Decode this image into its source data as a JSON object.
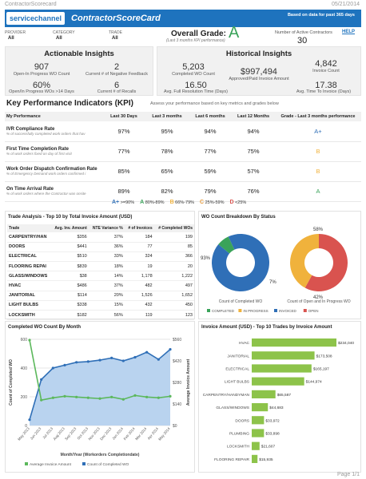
{
  "page": {
    "header_title": "ContractorScorecard",
    "header_date": "05/21/2014",
    "page_num": "Page 1/1"
  },
  "banner": {
    "logo": "servicechannel",
    "title": "ContractorScoreCard",
    "note": "Based on data for past 365 days",
    "help": "HELP"
  },
  "filters": [
    {
      "label": "PROVIDER",
      "value": "All"
    },
    {
      "label": "CATEGORY",
      "value": "All"
    },
    {
      "label": "TRADE",
      "value": "All"
    }
  ],
  "overall": {
    "label": "Overall Grade:",
    "sub": "(Last 3 months KPI performance)",
    "grade": "A"
  },
  "active": {
    "label": "Number of Active Contractors",
    "value": "30"
  },
  "actionable": {
    "title": "Actionable Insights",
    "items": [
      {
        "value": "907",
        "label": "Open-In Progress WO Count"
      },
      {
        "value": "2",
        "label": "Current # of Negative Feedback"
      },
      {
        "value": "60%",
        "label": "Open/In Progress WOs >14 Days"
      },
      {
        "value": "6",
        "label": "Current # of Recalls"
      }
    ]
  },
  "historical": {
    "title": "Historical Insights",
    "items": [
      {
        "value": "5,203",
        "label": "Completed WO Count"
      },
      {
        "value": "$997,494",
        "label": "Approved/Paid Invoice Amount"
      },
      {
        "value": "4,842",
        "label": "Invoice Count"
      },
      {
        "value": "16.50",
        "label": "Avg. Full Resolution Time (Days)"
      },
      {
        "value": "17.38",
        "label": "Avg. Time To Invoice (Days)"
      }
    ]
  },
  "kpi": {
    "title": "Key Performance Indicators (KPI)",
    "subtitle": "Assess your performance based on key metrics and grades below",
    "headers": [
      "My Performance",
      "Last 30 Days",
      "Last 3 months",
      "Last 6 months",
      "Last 12 Months",
      "Grade - Last 3 months performance"
    ],
    "rows": [
      {
        "title": "IVR Compliance Rate",
        "sub": "% of successfully completed work orders that hav",
        "vals": [
          "97%",
          "95%",
          "94%",
          "94%"
        ],
        "grade": "A+",
        "color": "#2f6fb7"
      },
      {
        "title": "First Time Completion Rate",
        "sub": "% of work orders fixed on day of first visit",
        "vals": [
          "77%",
          "78%",
          "77%",
          "75%"
        ],
        "grade": "B",
        "color": "#f0b23c"
      },
      {
        "title": "Work Order Dispatch Confirmation Rate",
        "sub": "% of Emergency Demand work orders confirmed i",
        "vals": [
          "85%",
          "65%",
          "59%",
          "57%"
        ],
        "grade": "B",
        "color": "#f0b23c"
      },
      {
        "title": "On Time Arrival Rate",
        "sub": "% of work orders where the Contractor was onsite",
        "vals": [
          "89%",
          "82%",
          "79%",
          "76%"
        ],
        "grade": "A",
        "color": "#3aa35a"
      }
    ],
    "legend": [
      {
        "grade": "A+",
        "range": ">=90%",
        "color": "#2f6fb7"
      },
      {
        "grade": "A",
        "range": "80%-89%",
        "color": "#3aa35a"
      },
      {
        "grade": "B",
        "range": "66%-79%",
        "color": "#f0b23c"
      },
      {
        "grade": "C",
        "range": "25%-59%",
        "color": "#e59a3c"
      },
      {
        "grade": "D",
        "range": "<25%",
        "color": "#d9534f"
      }
    ]
  },
  "trade": {
    "title": "Trade Analysis - Top 10 by Total Invoice Amount (USD)",
    "headers": [
      "Trade",
      "Avg. Inv. Amount",
      "NTE Variance %",
      "# of Invoices",
      "# Completed WOs"
    ],
    "rows": [
      [
        "CARPENTRY/HAN",
        "$356",
        "37%",
        "184",
        "199"
      ],
      [
        "DOORS",
        "$441",
        "36%",
        "77",
        "85"
      ],
      [
        "ELECTRICAL",
        "$510",
        "33%",
        "324",
        "366"
      ],
      [
        "FLOORING REPAI",
        "$839",
        "18%",
        "19",
        "20"
      ],
      [
        "GLASS/WINDOWS",
        "$38",
        "14%",
        "1,178",
        "1,222"
      ],
      [
        "HVAC",
        "$486",
        "37%",
        "482",
        "497"
      ],
      [
        "JANITORIAL",
        "$114",
        "20%",
        "1,526",
        "1,652"
      ],
      [
        "LIGHT BULBS",
        "$338",
        "15%",
        "432",
        "450"
      ],
      [
        "LOCKSMITH",
        "$182",
        "56%",
        "119",
        "123"
      ],
      [
        "PLUMBING",
        "$408",
        "32%",
        "83",
        "89"
      ]
    ]
  },
  "chart_data": [
    {
      "type": "pie",
      "title": "WO Count Breakdown By Status",
      "subtitle": "Count of Completed WO",
      "slices": [
        {
          "name": "COMPLETED",
          "value": 93,
          "color": "#2f6fb7"
        },
        {
          "name": "IN PROGRESS",
          "value": 7,
          "color": "#3aa35a"
        }
      ],
      "labels": [
        "93%",
        "7%"
      ]
    },
    {
      "type": "pie",
      "title": "WO Count Breakdown By Status",
      "subtitle": "Count of Open and In Progress WO",
      "slices": [
        {
          "name": "OPEN",
          "value": 58,
          "color": "#d9534f"
        },
        {
          "name": "IN PROGRESS",
          "value": 42,
          "color": "#f0b23c"
        }
      ],
      "labels": [
        "58%",
        "42%"
      ],
      "legend": [
        {
          "name": "COMPLETED",
          "color": "#3aa35a"
        },
        {
          "name": "IN PROGRESS",
          "color": "#f0b23c"
        },
        {
          "name": "INVOICED",
          "color": "#2f6fb7"
        },
        {
          "name": "OPEN",
          "color": "#d9534f"
        }
      ]
    },
    {
      "type": "line",
      "title": "Completed WO Count By Month",
      "xlabel": "Month/Year (Workorders Completiondate)",
      "ylabel": "Count of Completed WO",
      "y2label": "Average Invoice Amount",
      "categories": [
        "May 2013",
        "Jun 2013",
        "Jul 2013",
        "Aug 2013",
        "Sep 2013",
        "Oct 2013",
        "Nov 2013",
        "Dec 2013",
        "Jan 2014",
        "Feb 2014",
        "Mar 2014",
        "Apr 2014",
        "May 2014"
      ],
      "ylim": [
        0,
        600
      ],
      "yticks": [
        "0",
        "200",
        "400",
        "600"
      ],
      "y2lim": [
        0,
        560
      ],
      "y2ticks": [
        "$0",
        "$140",
        "$280",
        "$420",
        "$560"
      ],
      "series": [
        {
          "name": "Count of Completed WO",
          "color": "#2f6fb7",
          "values": [
            40,
            320,
            400,
            420,
            440,
            445,
            455,
            470,
            450,
            475,
            510,
            460,
            530
          ]
        },
        {
          "name": "Average Invoice Amount",
          "color": "#5cb85c",
          "values": [
            555,
            165,
            180,
            190,
            185,
            180,
            175,
            185,
            170,
            195,
            185,
            180,
            190
          ]
        }
      ]
    },
    {
      "type": "bar",
      "title": "Invoice Amount (USD) - Top 10 Trades by Invoice Amount",
      "categories": [
        "HVAC",
        "JANITORIAL",
        "ELECTRICAL",
        "LIGHT BULBS",
        "CARPENTRY/HANDYMAN",
        "GLASS/WINDOWS",
        "DOORS",
        "PLUMBING",
        "LOCKSMITH",
        "FLOORING REPAIR"
      ],
      "values": [
        234040,
        173508,
        165197,
        144974,
        65587,
        44683,
        33972,
        33898,
        21607,
        15935
      ],
      "value_labels": [
        "$234,040",
        "$173,508",
        "$165,197",
        "$144,974",
        "$65,587",
        "$44,683",
        "$33,972",
        "$33,898",
        "$21,607",
        "$15,935"
      ],
      "color": "#8dc34a"
    }
  ]
}
